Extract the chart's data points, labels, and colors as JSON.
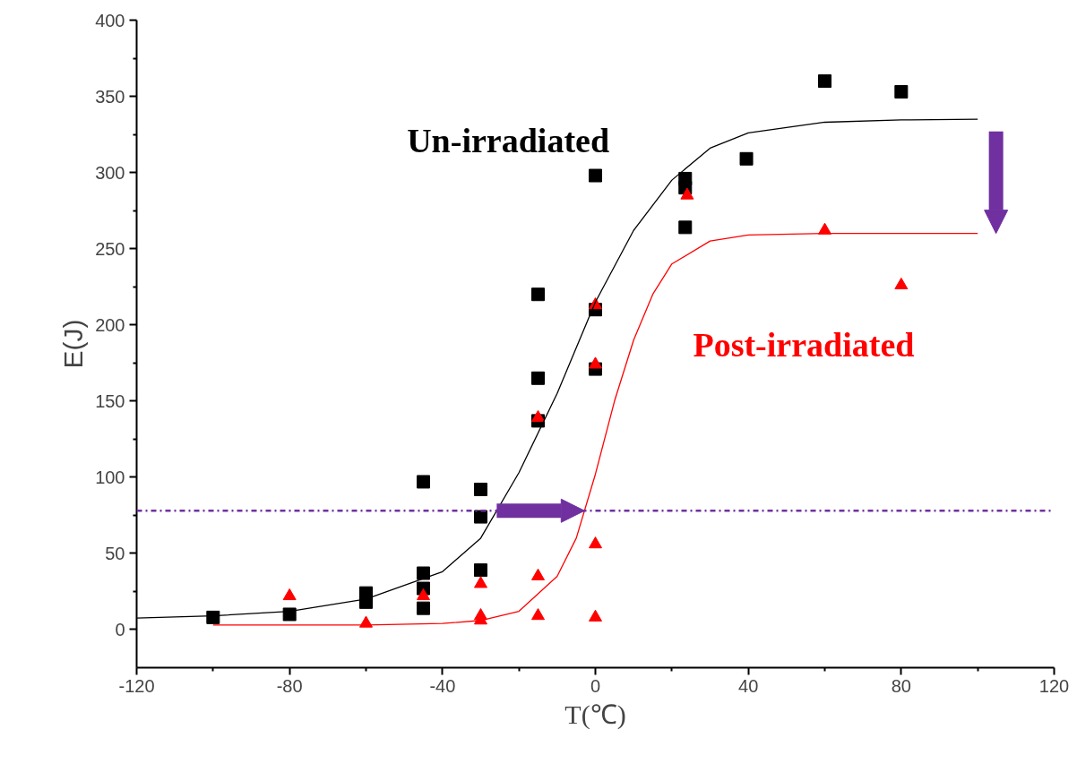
{
  "chart_data": {
    "type": "scatter",
    "xlabel": "T(℃)",
    "ylabel": "E(J)",
    "xlim": [
      -120,
      120
    ],
    "ylim": [
      -25,
      400
    ],
    "xticks": [
      -120,
      -80,
      -40,
      0,
      40,
      80,
      120
    ],
    "yticks": [
      0,
      50,
      100,
      150,
      200,
      250,
      300,
      350,
      400
    ],
    "grid": false,
    "ref_lines": [
      {
        "axis": "y",
        "value": 78,
        "color": "#7030a0",
        "line_style": "dashdot"
      }
    ],
    "series": [
      {
        "name": "Un-irradiated",
        "color": "#000000",
        "marker": "square",
        "x": [
          -100,
          -80,
          -60,
          -60,
          -45,
          -45,
          -45,
          -45,
          -30,
          -30,
          -30,
          -15,
          -15,
          -15,
          0,
          0,
          0,
          23.5,
          23.5,
          23.5,
          39.5,
          60,
          80
        ],
        "values": [
          8,
          10,
          24,
          18,
          97,
          37,
          27,
          14,
          92,
          74,
          39,
          220,
          165,
          137,
          298,
          210,
          171,
          296,
          290,
          264,
          309,
          360,
          353
        ]
      },
      {
        "name": "Post-irradiated",
        "color": "#ff0000",
        "marker": "triangle",
        "x": [
          -80,
          -60,
          -45,
          -30,
          -30,
          -30,
          -15,
          -15,
          -15,
          0,
          0,
          0,
          0,
          24,
          60,
          80
        ],
        "values": [
          22,
          4,
          22,
          30,
          9,
          6,
          139,
          35,
          9,
          213,
          174,
          56,
          8,
          285,
          262,
          226
        ]
      },
      {
        "type": "line",
        "color": "#000000",
        "x": [
          -120,
          -100,
          -80,
          -60,
          -40,
          -30,
          -20,
          -10,
          0,
          10,
          20,
          30,
          40,
          60,
          80,
          100
        ],
        "values": [
          7.5,
          9,
          12,
          20,
          38,
          60,
          103,
          155,
          215,
          262,
          295,
          316,
          326,
          333,
          334.5,
          335
        ]
      },
      {
        "type": "line",
        "color": "#ff0000",
        "x": [
          -100,
          -60,
          -40,
          -30,
          -20,
          -10,
          -5,
          0,
          5,
          10,
          15,
          20,
          30,
          40,
          60,
          100
        ],
        "values": [
          3,
          3,
          4,
          6,
          12,
          35,
          60,
          102,
          150,
          190,
          220,
          240,
          255,
          259,
          260,
          260
        ]
      }
    ]
  }
}
